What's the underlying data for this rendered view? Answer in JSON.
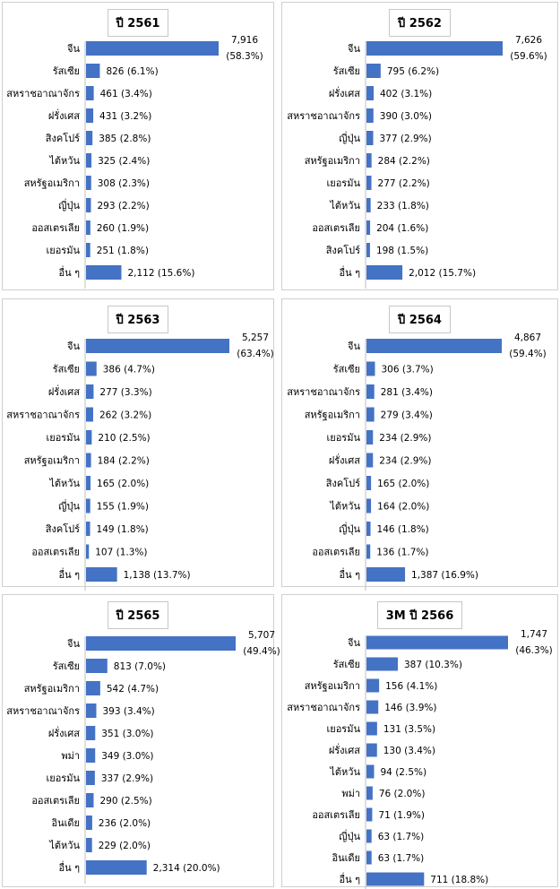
{
  "colors": {
    "bar": "#4472c4",
    "text": "#000000",
    "axis": "#bfbfbf"
  },
  "chart_data": [
    {
      "type": "bar",
      "orientation": "horizontal",
      "title": "ปี 2561",
      "categories": [
        "จีน",
        "รัสเซีย",
        "สหราชอาณาจักร",
        "ฝรั่งเศส",
        "สิงคโปร์",
        "ไต้หวัน",
        "สหรัฐอเมริกา",
        "ญี่ปุ่น",
        "ออสเตรเลีย",
        "เยอรมัน",
        "อื่น ๆ"
      ],
      "values": [
        7916,
        826,
        461,
        431,
        385,
        325,
        308,
        293,
        260,
        251,
        2112
      ],
      "value_labels": [
        "7,916",
        "826",
        "461",
        "431",
        "385",
        "325",
        "308",
        "293",
        "260",
        "251",
        "2,112"
      ],
      "percent_labels": [
        "(58.3%)",
        "(6.1%)",
        "(3.4%)",
        "(3.2%)",
        "(2.8%)",
        "(2.4%)",
        "(2.3%)",
        "(2.2%)",
        "(1.9%)",
        "(1.8%)",
        "(15.6%)"
      ]
    },
    {
      "type": "bar",
      "orientation": "horizontal",
      "title": "ปี 2562",
      "categories": [
        "จีน",
        "รัสเซีย",
        "ฝรั่งเศส",
        "สหราชอาณาจักร",
        "ญี่ปุ่น",
        "สหรัฐอเมริกา",
        "เยอรมัน",
        "ไต้หวัน",
        "ออสเตรเลีย",
        "สิงคโปร์",
        "อื่น ๆ"
      ],
      "values": [
        7626,
        795,
        402,
        390,
        377,
        284,
        277,
        233,
        204,
        198,
        2012
      ],
      "value_labels": [
        "7,626",
        "795",
        "402",
        "390",
        "377",
        "284",
        "277",
        "233",
        "204",
        "198",
        "2,012"
      ],
      "percent_labels": [
        "(59.6%)",
        "(6.2%)",
        "(3.1%)",
        "(3.0%)",
        "(2.9%)",
        "(2.2%)",
        "(2.2%)",
        "(1.8%)",
        "(1.6%)",
        "(1.5%)",
        "(15.7%)"
      ]
    },
    {
      "type": "bar",
      "orientation": "horizontal",
      "title": "ปี 2563",
      "categories": [
        "จีน",
        "รัสเซีย",
        "ฝรั่งเศส",
        "สหราชอาณาจักร",
        "เยอรมัน",
        "สหรัฐอเมริกา",
        "ไต้หวัน",
        "ญี่ปุ่น",
        "สิงคโปร์",
        "ออสเตรเลีย",
        "อื่น ๆ"
      ],
      "values": [
        5257,
        386,
        277,
        262,
        210,
        184,
        165,
        155,
        149,
        107,
        1138
      ],
      "value_labels": [
        "5,257",
        "386",
        "277",
        "262",
        "210",
        "184",
        "165",
        "155",
        "149",
        "107",
        "1,138"
      ],
      "percent_labels": [
        "(63.4%)",
        "(4.7%)",
        "(3.3%)",
        "(3.2%)",
        "(2.5%)",
        "(2.2%)",
        "(2.0%)",
        "(1.9%)",
        "(1.8%)",
        "(1.3%)",
        "(13.7%)"
      ]
    },
    {
      "type": "bar",
      "orientation": "horizontal",
      "title": "ปี 2564",
      "categories": [
        "จีน",
        "รัสเซีย",
        "สหราชอาณาจักร",
        "สหรัฐอเมริกา",
        "เยอรมัน",
        "ฝรั่งเศส",
        "สิงคโปร์",
        "ไต้หวัน",
        "ญี่ปุ่น",
        "ออสเตรเลีย",
        "อื่น ๆ"
      ],
      "values": [
        4867,
        306,
        281,
        279,
        234,
        234,
        165,
        164,
        146,
        136,
        1387
      ],
      "value_labels": [
        "4,867",
        "306",
        "281",
        "279",
        "234",
        "234",
        "165",
        "164",
        "146",
        "136",
        "1,387"
      ],
      "percent_labels": [
        "(59.4%)",
        "(3.7%)",
        "(3.4%)",
        "(3.4%)",
        "(2.9%)",
        "(2.9%)",
        "(2.0%)",
        "(2.0%)",
        "(1.8%)",
        "(1.7%)",
        "(16.9%)"
      ]
    },
    {
      "type": "bar",
      "orientation": "horizontal",
      "title": "ปี 2565",
      "categories": [
        "จีน",
        "รัสเซีย",
        "สหรัฐอเมริกา",
        "สหราชอาณาจักร",
        "ฝรั่งเศส",
        "พม่า",
        "เยอรมัน",
        "ออสเตรเลีย",
        "อินเดีย",
        "ไต้หวัน",
        "อื่น ๆ"
      ],
      "values": [
        5707,
        813,
        542,
        393,
        351,
        349,
        337,
        290,
        236,
        229,
        2314
      ],
      "value_labels": [
        "5,707",
        "813",
        "542",
        "393",
        "351",
        "349",
        "337",
        "290",
        "236",
        "229",
        "2,314"
      ],
      "percent_labels": [
        "(49.4%)",
        "(7.0%)",
        "(4.7%)",
        "(3.4%)",
        "(3.0%)",
        "(3.0%)",
        "(2.9%)",
        "(2.5%)",
        "(2.0%)",
        "(2.0%)",
        "(20.0%)"
      ]
    },
    {
      "type": "bar",
      "orientation": "horizontal",
      "title": "3M ปี 2566",
      "categories": [
        "จีน",
        "รัสเซีย",
        "สหรัฐอเมริกา",
        "สหราชอาณาจักร",
        "เยอรมัน",
        "ฝรั่งเศส",
        "ไต้หวัน",
        "พม่า",
        "ออสเตรเลีย",
        "ญี่ปุ่น",
        "อินเดีย",
        "อื่น ๆ"
      ],
      "values": [
        1747,
        387,
        156,
        146,
        131,
        130,
        94,
        76,
        71,
        63,
        63,
        711
      ],
      "value_labels": [
        "1,747",
        "387",
        "156",
        "146",
        "131",
        "130",
        "94",
        "76",
        "71",
        "63",
        "63",
        "711"
      ],
      "percent_labels": [
        "(46.3%)",
        "(10.3%)",
        "(4.1%)",
        "(3.9%)",
        "(3.5%)",
        "(3.4%)",
        "(2.5%)",
        "(2.0%)",
        "(1.9%)",
        "(1.7%)",
        "(1.7%)",
        "(18.8%)"
      ]
    }
  ]
}
